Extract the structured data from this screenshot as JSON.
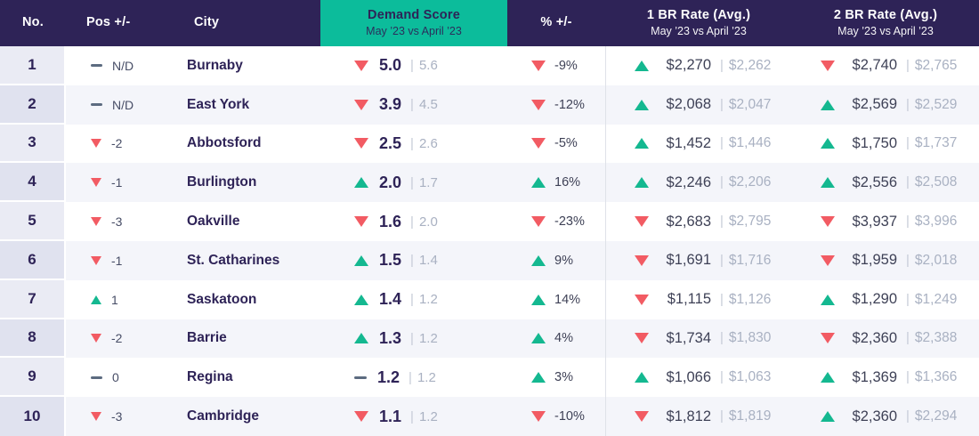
{
  "separator": "|",
  "colors": {
    "header_bg": "#2e2357",
    "header_text": "#ffffff",
    "accent_teal": "#0cbc9b",
    "navy_text": "#2e2357",
    "dark_text": "#3e4156",
    "muted_text": "#a9b1c2",
    "up_green": "#14b890",
    "down_red": "#f25b63",
    "flat_gray": "#5c6b80",
    "row_alt_bg": "#f4f5fa",
    "no_col_bg": "#eaebf4",
    "no_col_alt_bg": "#e0e2ef",
    "divider": "#dfe2e8"
  },
  "chart_data": {
    "type": "table",
    "columns": [
      {
        "label": "No.",
        "sublabel": ""
      },
      {
        "label": "Pos +/-",
        "sublabel": ""
      },
      {
        "label": "City",
        "sublabel": ""
      },
      {
        "label": "Demand Score",
        "sublabel": "May ’23 vs April ’23"
      },
      {
        "label": "% +/-",
        "sublabel": ""
      },
      {
        "label": "1 BR Rate (Avg.)",
        "sublabel": "May ’23 vs April ’23"
      },
      {
        "label": "2 BR Rate (Avg.)",
        "sublabel": "May ’23 vs April ’23"
      }
    ],
    "rows": [
      {
        "no": "1",
        "pos": {
          "dir": "flat",
          "value": "N/D"
        },
        "city": "Burnaby",
        "demand": {
          "dir": "down",
          "current": "5.0",
          "previous": "5.6"
        },
        "pct": {
          "dir": "down",
          "value": "-9%"
        },
        "br1": {
          "dir": "up",
          "current": "$2,270",
          "previous": "$2,262"
        },
        "br2": {
          "dir": "down",
          "current": "$2,740",
          "previous": "$2,765"
        }
      },
      {
        "no": "2",
        "pos": {
          "dir": "flat",
          "value": "N/D"
        },
        "city": "East York",
        "demand": {
          "dir": "down",
          "current": "3.9",
          "previous": "4.5"
        },
        "pct": {
          "dir": "down",
          "value": "-12%"
        },
        "br1": {
          "dir": "up",
          "current": "$2,068",
          "previous": "$2,047"
        },
        "br2": {
          "dir": "up",
          "current": "$2,569",
          "previous": "$2,529"
        }
      },
      {
        "no": "3",
        "pos": {
          "dir": "down",
          "value": "-2"
        },
        "city": "Abbotsford",
        "demand": {
          "dir": "down",
          "current": "2.5",
          "previous": "2.6"
        },
        "pct": {
          "dir": "down",
          "value": "-5%"
        },
        "br1": {
          "dir": "up",
          "current": "$1,452",
          "previous": "$1,446"
        },
        "br2": {
          "dir": "up",
          "current": "$1,750",
          "previous": "$1,737"
        }
      },
      {
        "no": "4",
        "pos": {
          "dir": "down",
          "value": "-1"
        },
        "city": "Burlington",
        "demand": {
          "dir": "up",
          "current": "2.0",
          "previous": "1.7"
        },
        "pct": {
          "dir": "up",
          "value": "16%"
        },
        "br1": {
          "dir": "up",
          "current": "$2,246",
          "previous": "$2,206"
        },
        "br2": {
          "dir": "up",
          "current": "$2,556",
          "previous": "$2,508"
        }
      },
      {
        "no": "5",
        "pos": {
          "dir": "down",
          "value": "-3"
        },
        "city": "Oakville",
        "demand": {
          "dir": "down",
          "current": "1.6",
          "previous": "2.0"
        },
        "pct": {
          "dir": "down",
          "value": "-23%"
        },
        "br1": {
          "dir": "down",
          "current": "$2,683",
          "previous": "$2,795"
        },
        "br2": {
          "dir": "down",
          "current": "$3,937",
          "previous": "$3,996"
        }
      },
      {
        "no": "6",
        "pos": {
          "dir": "down",
          "value": "-1"
        },
        "city": "St. Catharines",
        "demand": {
          "dir": "up",
          "current": "1.5",
          "previous": "1.4"
        },
        "pct": {
          "dir": "up",
          "value": "9%"
        },
        "br1": {
          "dir": "down",
          "current": "$1,691",
          "previous": "$1,716"
        },
        "br2": {
          "dir": "down",
          "current": "$1,959",
          "previous": "$2,018"
        }
      },
      {
        "no": "7",
        "pos": {
          "dir": "up",
          "value": "1"
        },
        "city": "Saskatoon",
        "demand": {
          "dir": "up",
          "current": "1.4",
          "previous": "1.2"
        },
        "pct": {
          "dir": "up",
          "value": "14%"
        },
        "br1": {
          "dir": "down",
          "current": "$1,115",
          "previous": "$1,126"
        },
        "br2": {
          "dir": "up",
          "current": "$1,290",
          "previous": "$1,249"
        }
      },
      {
        "no": "8",
        "pos": {
          "dir": "down",
          "value": "-2"
        },
        "city": "Barrie",
        "demand": {
          "dir": "up",
          "current": "1.3",
          "previous": "1.2"
        },
        "pct": {
          "dir": "up",
          "value": "4%"
        },
        "br1": {
          "dir": "down",
          "current": "$1,734",
          "previous": "$1,830"
        },
        "br2": {
          "dir": "down",
          "current": "$2,360",
          "previous": "$2,388"
        }
      },
      {
        "no": "9",
        "pos": {
          "dir": "flat",
          "value": "0"
        },
        "city": "Regina",
        "demand": {
          "dir": "flat",
          "current": "1.2",
          "previous": "1.2"
        },
        "pct": {
          "dir": "up",
          "value": "3%"
        },
        "br1": {
          "dir": "up",
          "current": "$1,066",
          "previous": "$1,063"
        },
        "br2": {
          "dir": "up",
          "current": "$1,369",
          "previous": "$1,366"
        }
      },
      {
        "no": "10",
        "pos": {
          "dir": "down",
          "value": "-3"
        },
        "city": "Cambridge",
        "demand": {
          "dir": "down",
          "current": "1.1",
          "previous": "1.2"
        },
        "pct": {
          "dir": "down",
          "value": "-10%"
        },
        "br1": {
          "dir": "down",
          "current": "$1,812",
          "previous": "$1,819"
        },
        "br2": {
          "dir": "up",
          "current": "$2,360",
          "previous": "$2,294"
        }
      }
    ]
  }
}
